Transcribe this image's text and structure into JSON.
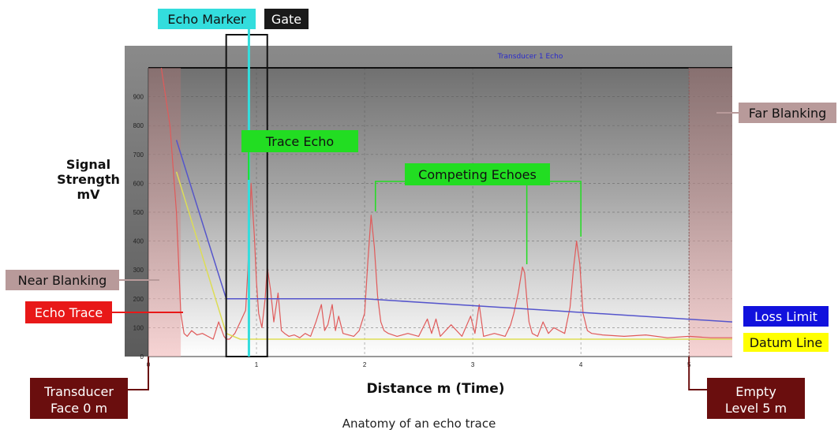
{
  "caption": "Anatomy of an echo trace",
  "chart_data": {
    "type": "line",
    "title": "Transducer 1 Echo",
    "xlabel": "Distance m (Time)",
    "ylabel": "Signal Strength mV",
    "xlim": [
      0,
      5.4
    ],
    "ylim": [
      0,
      1000
    ],
    "x_ticks": [
      "0",
      "1",
      "2",
      "3",
      "4",
      "5"
    ],
    "y_ticks": [
      "0",
      "100",
      "200",
      "300",
      "400",
      "500",
      "600",
      "700",
      "800",
      "900"
    ],
    "grid": true,
    "series": [
      {
        "name": "Echo Trace",
        "color": "#e05a5a",
        "x": [
          0.12,
          0.2,
          0.26,
          0.3,
          0.33,
          0.36,
          0.4,
          0.45,
          0.5,
          0.55,
          0.6,
          0.65,
          0.7,
          0.72,
          0.75,
          0.8,
          0.85,
          0.9,
          0.92,
          0.95,
          0.98,
          1.0,
          1.02,
          1.05,
          1.08,
          1.1,
          1.13,
          1.16,
          1.2,
          1.23,
          1.26,
          1.3,
          1.35,
          1.4,
          1.45,
          1.5,
          1.55,
          1.6,
          1.63,
          1.66,
          1.7,
          1.73,
          1.76,
          1.8,
          1.85,
          1.9,
          1.95,
          2.0,
          2.03,
          2.06,
          2.09,
          2.12,
          2.15,
          2.18,
          2.22,
          2.3,
          2.4,
          2.5,
          2.58,
          2.62,
          2.66,
          2.7,
          2.8,
          2.9,
          2.98,
          3.02,
          3.06,
          3.1,
          3.2,
          3.3,
          3.35,
          3.38,
          3.42,
          3.46,
          3.48,
          3.5,
          3.52,
          3.55,
          3.6,
          3.65,
          3.7,
          3.75,
          3.8,
          3.85,
          3.9,
          3.93,
          3.96,
          3.99,
          4.02,
          4.06,
          4.1,
          4.2,
          4.4,
          4.6,
          4.8,
          5.0,
          5.2,
          5.4
        ],
        "values": [
          1000,
          800,
          500,
          150,
          80,
          70,
          90,
          75,
          80,
          70,
          60,
          120,
          70,
          60,
          60,
          80,
          120,
          160,
          300,
          600,
          420,
          260,
          150,
          100,
          200,
          310,
          230,
          120,
          220,
          90,
          80,
          70,
          75,
          65,
          80,
          70,
          120,
          180,
          90,
          110,
          180,
          90,
          140,
          80,
          75,
          70,
          90,
          150,
          330,
          490,
          380,
          210,
          120,
          90,
          80,
          70,
          80,
          70,
          130,
          80,
          130,
          70,
          110,
          70,
          140,
          80,
          180,
          70,
          80,
          70,
          110,
          150,
          220,
          310,
          290,
          200,
          120,
          80,
          70,
          120,
          80,
          100,
          90,
          80,
          170,
          300,
          400,
          320,
          150,
          90,
          80,
          75,
          70,
          75,
          65,
          70,
          65,
          65
        ]
      },
      {
        "name": "Loss Limit",
        "color": "#5555cc",
        "x": [
          0.26,
          0.72,
          2.0,
          5.4
        ],
        "values": [
          750,
          200,
          200,
          120
        ]
      },
      {
        "name": "Datum Line",
        "color": "#dddd55",
        "x": [
          0.26,
          0.72,
          0.85,
          5.4
        ],
        "values": [
          640,
          80,
          60,
          60
        ]
      }
    ],
    "annotations": {
      "echo_marker": "Echo Marker",
      "gate": "Gate",
      "trace_echo": "Trace Echo",
      "competing_echoes": "Competing Echoes",
      "far_blanking": "Far Blanking",
      "near_blanking": "Near Blanking",
      "echo_trace": "Echo Trace",
      "loss_limit": "Loss Limit",
      "datum_line": "Datum Line",
      "transducer_line1": "Transducer",
      "transducer_line2": "Face 0 m",
      "empty_line1": "Empty",
      "empty_line2": "Level 5 m",
      "ylabel_line1": "Signal",
      "ylabel_line2": "Strength",
      "ylabel_line3": "mV"
    },
    "marker_x": {
      "echo_marker": 0.93,
      "gate_start": 0.72,
      "gate_end": 1.1,
      "near_blanking_end": 0.3,
      "far_blanking_start": 5.0,
      "trace_echo_peak": 0.95,
      "competing_peaks": [
        2.1,
        3.5,
        4.0
      ]
    },
    "colors": {
      "echo_marker": "#33dddd",
      "gate": "#111111",
      "trace_echo": "#22dd22",
      "competing": "#22dd22",
      "blanking": "#b89a9a",
      "echo_trace": "#e81818",
      "loss_limit": "#1111dd",
      "datum_line": "#ffff00",
      "transducer": "#6a0e0e"
    }
  }
}
